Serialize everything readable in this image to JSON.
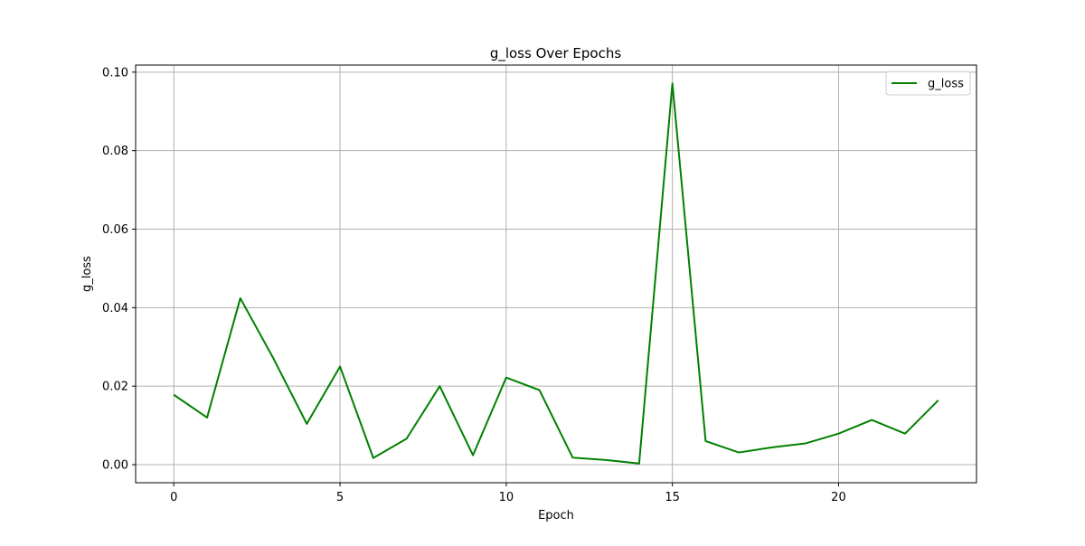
{
  "chart_data": {
    "type": "line",
    "title": "g_loss Over Epochs",
    "xlabel": "Epoch",
    "ylabel": "g_loss",
    "xlim": [
      -1.15,
      24.15
    ],
    "ylim": [
      -0.0046,
      0.1018
    ],
    "xticks": [
      0,
      5,
      10,
      15,
      20
    ],
    "xtick_labels": [
      "0",
      "5",
      "10",
      "15",
      "20"
    ],
    "yticks": [
      0.0,
      0.02,
      0.04,
      0.06,
      0.08,
      0.1
    ],
    "ytick_labels": [
      "0.00",
      "0.02",
      "0.04",
      "0.06",
      "0.08",
      "0.10"
    ],
    "grid": true,
    "legend": {
      "placement": "top-right",
      "entries": [
        "g_loss"
      ]
    },
    "series": [
      {
        "name": "g_loss",
        "color": "#008000",
        "x": [
          0,
          1,
          2,
          3,
          4,
          5,
          6,
          7,
          8,
          9,
          10,
          11,
          12,
          13,
          14,
          15,
          16,
          17,
          18,
          19,
          20,
          21,
          22,
          23
        ],
        "values": [
          0.0178,
          0.012,
          0.0424,
          0.027,
          0.0104,
          0.025,
          0.0017,
          0.0066,
          0.02,
          0.0024,
          0.0222,
          0.019,
          0.0018,
          0.0012,
          0.0003,
          0.0971,
          0.006,
          0.0031,
          0.0044,
          0.0054,
          0.0079,
          0.0114,
          0.0079,
          0.0164
        ]
      }
    ]
  }
}
